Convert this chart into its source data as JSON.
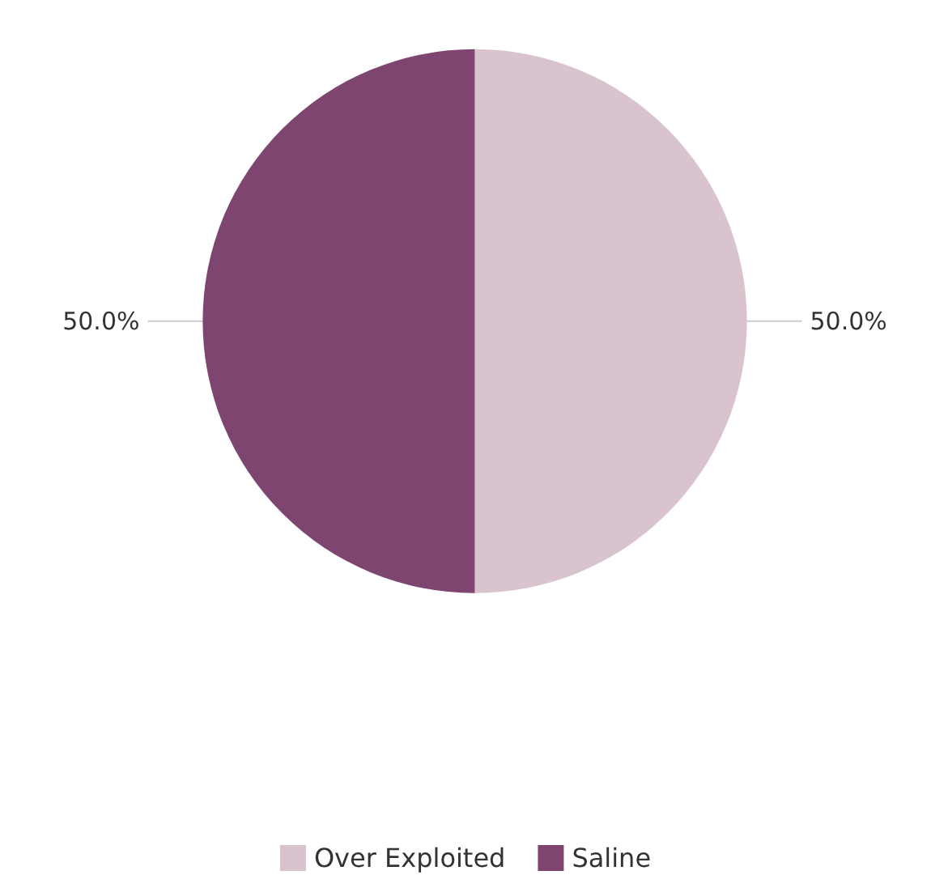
{
  "chart_data": {
    "type": "pie",
    "categories": [
      "Over Exploited",
      "Saline"
    ],
    "values": [
      50,
      50
    ],
    "colors": [
      "#d9c3cf",
      "#7f4571"
    ],
    "value_labels": [
      "50.0%",
      "50.0%"
    ],
    "legend": "bottom"
  }
}
